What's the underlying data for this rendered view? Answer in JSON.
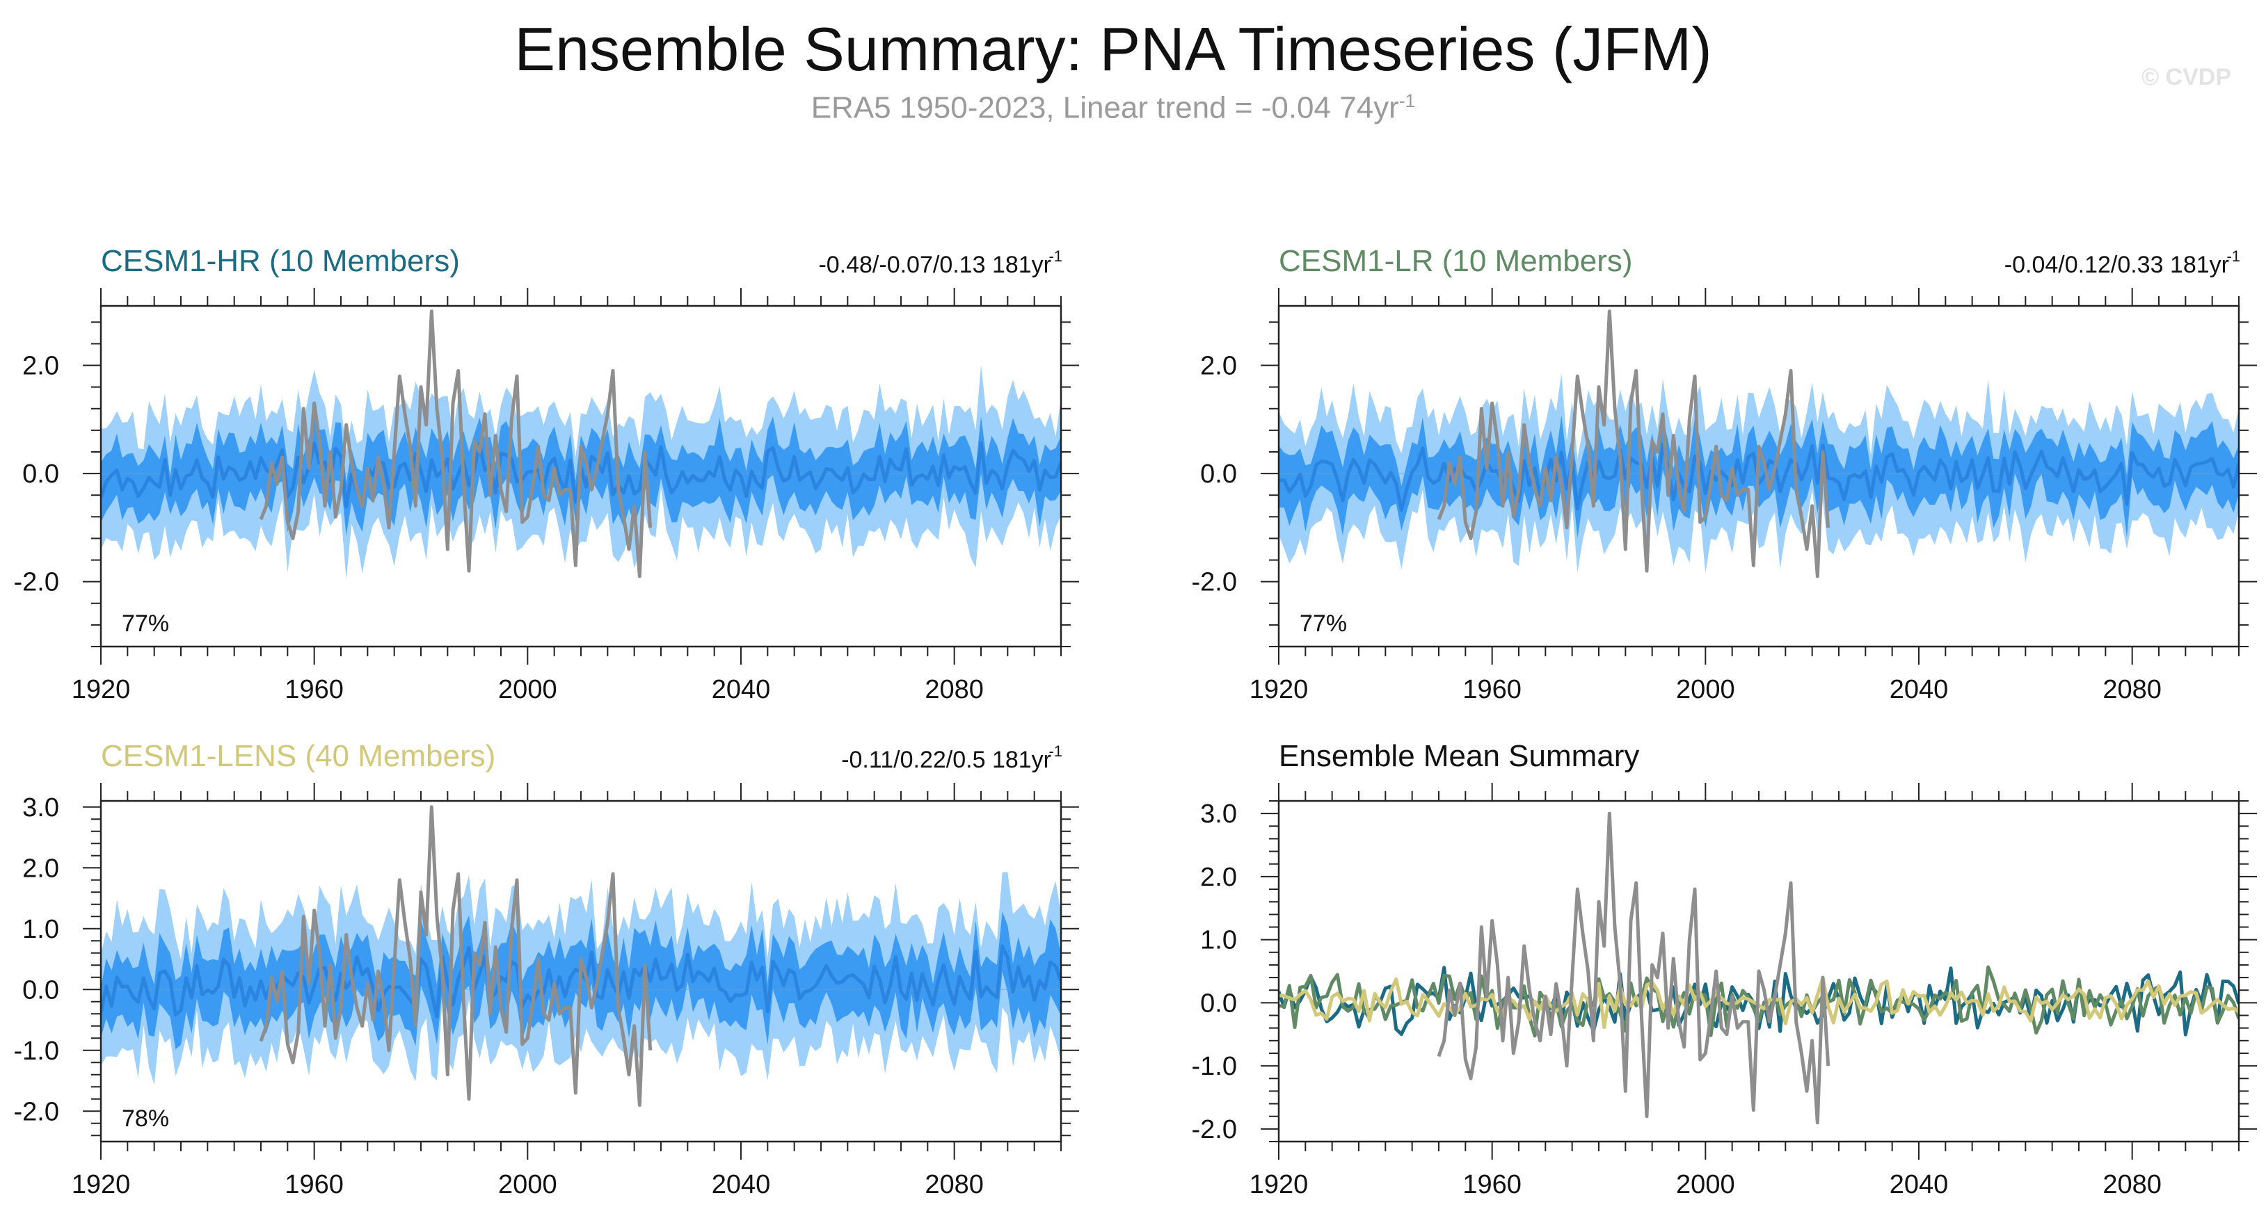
{
  "header": {
    "title": "Ensemble Summary: PNA Timeseries (JFM)",
    "subtitle_main": "ERA5 1950-2023, Linear trend = -0.04 74yr",
    "subtitle_sup": "-1",
    "watermark": "© CVDP"
  },
  "colors": {
    "outer_band": "#9dd0fb",
    "inner_band": "#3b9bf3",
    "ens_mean_line": "#2a84e0",
    "obs_line": "#8e8e8e",
    "hr": "#1b6b85",
    "lr": "#5f8a64",
    "lens": "#d2c87a"
  },
  "chart_data": [
    {
      "type": "area",
      "title": "CESM1-HR (10 Members)",
      "title_color": "#1b6b85",
      "trend_text": "-0.48/-0.07/0.13 181yr",
      "trend_sup": "-1",
      "percent_label": "77%",
      "xlim": [
        1920,
        2100
      ],
      "ylim": [
        -3.2,
        3.1
      ],
      "yticks": [
        -2.0,
        0.0,
        2.0
      ],
      "yticklabels": [
        "-2.0",
        "0.0",
        "2.0"
      ],
      "xticks": [
        1920,
        1960,
        2000,
        2040,
        2080
      ],
      "members": 10,
      "seed": 11,
      "series": [
        "ensemble range (outer band)",
        "interquartile (inner band)",
        "ensemble mean",
        "ERA5 observations"
      ]
    },
    {
      "type": "area",
      "title": "CESM1-LR (10 Members)",
      "title_color": "#5f8a64",
      "trend_text": "-0.04/0.12/0.33 181yr",
      "trend_sup": "-1",
      "percent_label": "77%",
      "xlim": [
        1920,
        2100
      ],
      "ylim": [
        -3.2,
        3.1
      ],
      "yticks": [
        -2.0,
        0.0,
        2.0
      ],
      "yticklabels": [
        "-2.0",
        "0.0",
        "2.0"
      ],
      "xticks": [
        1920,
        1960,
        2000,
        2040,
        2080
      ],
      "members": 10,
      "seed": 23,
      "series": [
        "ensemble range (outer band)",
        "interquartile (inner band)",
        "ensemble mean",
        "ERA5 observations"
      ]
    },
    {
      "type": "area",
      "title": "CESM1-LENS (40 Members)",
      "title_color": "#d2c87a",
      "trend_text": "-0.11/0.22/0.5 181yr",
      "trend_sup": "-1",
      "percent_label": "78%",
      "xlim": [
        1920,
        2100
      ],
      "ylim": [
        -2.5,
        3.1
      ],
      "yticks": [
        -2.0,
        -1.0,
        0.0,
        1.0,
        2.0,
        3.0
      ],
      "yticklabels": [
        "-2.0",
        "-1.0",
        "0.0",
        "1.0",
        "2.0",
        "3.0"
      ],
      "xticks": [
        1920,
        1960,
        2000,
        2040,
        2080
      ],
      "members": 40,
      "seed": 37,
      "series": [
        "ensemble range (outer band)",
        "interquartile (inner band)",
        "ensemble mean",
        "ERA5 observations"
      ]
    },
    {
      "type": "line",
      "title": "Ensemble Mean Summary",
      "title_color": "#111111",
      "trend_text": "",
      "trend_sup": "",
      "percent_label": "",
      "xlim": [
        1920,
        2100
      ],
      "ylim": [
        -2.2,
        3.2
      ],
      "yticks": [
        -2.0,
        -1.0,
        0.0,
        1.0,
        2.0,
        3.0
      ],
      "yticklabels": [
        "-2.0",
        "-1.0",
        "0.0",
        "1.0",
        "2.0",
        "3.0"
      ],
      "xticks": [
        1920,
        1960,
        2000,
        2040,
        2080
      ],
      "seed": 51,
      "series": [
        "CESM1-HR ensemble mean",
        "CESM1-LR ensemble mean",
        "CESM1-LENS ensemble mean",
        "ERA5 observations"
      ]
    }
  ],
  "obs_era5": {
    "years": [
      1950,
      1951,
      1952,
      1953,
      1954,
      1955,
      1956,
      1957,
      1958,
      1959,
      1960,
      1961,
      1962,
      1963,
      1964,
      1965,
      1966,
      1967,
      1968,
      1969,
      1970,
      1971,
      1972,
      1973,
      1974,
      1975,
      1976,
      1977,
      1978,
      1979,
      1980,
      1981,
      1982,
      1983,
      1984,
      1985,
      1986,
      1987,
      1988,
      1989,
      1990,
      1991,
      1992,
      1993,
      1994,
      1995,
      1996,
      1997,
      1998,
      1999,
      2000,
      2001,
      2002,
      2003,
      2004,
      2005,
      2006,
      2007,
      2008,
      2009,
      2010,
      2011,
      2012,
      2013,
      2014,
      2015,
      2016,
      2017,
      2018,
      2019,
      2020,
      2021,
      2022,
      2023
    ],
    "values": [
      -0.85,
      -0.6,
      0.2,
      -0.2,
      0.3,
      -0.9,
      -1.2,
      -0.7,
      1.2,
      0.1,
      1.3,
      0.6,
      -0.6,
      0.4,
      -0.8,
      -0.3,
      0.9,
      0.2,
      -0.3,
      -0.6,
      0.1,
      -0.5,
      0.3,
      -0.2,
      -1.0,
      0.4,
      1.8,
      1.1,
      0.5,
      -0.6,
      1.6,
      0.9,
      3.0,
      1.2,
      0.3,
      -1.4,
      1.3,
      1.9,
      -0.2,
      -1.8,
      0.6,
      0.4,
      1.1,
      -0.4,
      0.7,
      -0.3,
      -0.7,
      1.0,
      1.8,
      -0.9,
      -0.8,
      -0.2,
      0.5,
      -0.4,
      -0.5,
      0.1,
      -0.4,
      -0.3,
      -0.3,
      -1.7,
      0.5,
      0.2,
      -0.3,
      0.1,
      0.6,
      1.1,
      1.9,
      -0.3,
      -0.8,
      -1.4,
      -0.6,
      -1.9,
      0.4,
      -1.0
    ]
  }
}
